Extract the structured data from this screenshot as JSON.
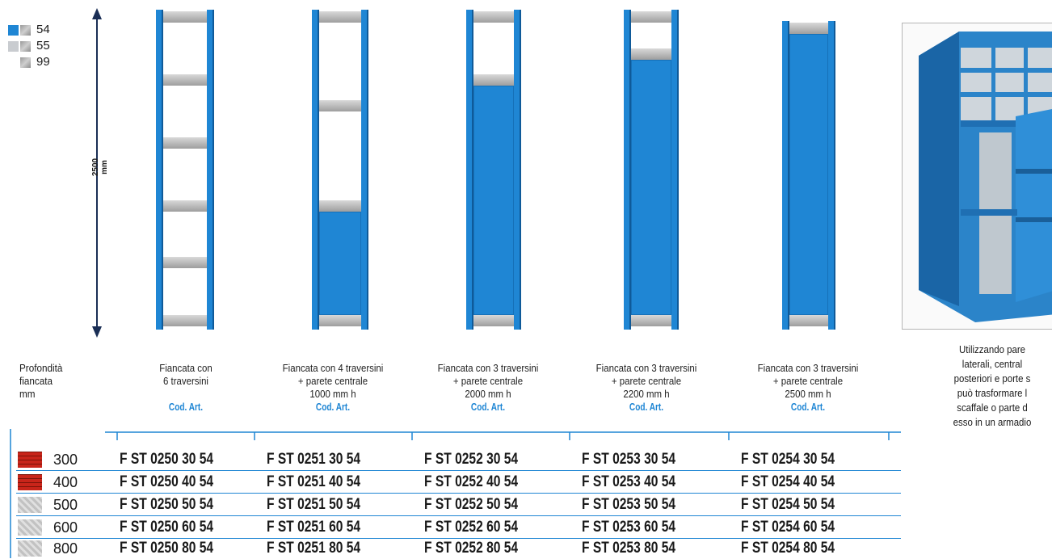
{
  "legend": [
    {
      "label": "54",
      "swatches": [
        "blue",
        "grey"
      ]
    },
    {
      "label": "55",
      "swatches": [
        "light",
        "grey"
      ]
    },
    {
      "label": "99",
      "swatches": [
        "empty",
        "grey"
      ]
    }
  ],
  "dimension_label": "2500 mm",
  "depth_header": {
    "line1": "Profondità",
    "line2": "fiancata",
    "line3": "mm"
  },
  "columns": [
    {
      "lines": [
        "Fiancata con",
        "6 traversini",
        ""
      ],
      "cod": "Cod. Art."
    },
    {
      "lines": [
        "Fiancata con 4 traversini",
        "+ parete centrale",
        "1000 mm h"
      ],
      "cod": "Cod. Art."
    },
    {
      "lines": [
        "Fiancata con 3 traversini",
        "+ parete centrale",
        "2000 mm h"
      ],
      "cod": "Cod. Art."
    },
    {
      "lines": [
        "Fiancata con 3 traversini",
        "+ parete centrale",
        "2200 mm h"
      ],
      "cod": "Cod. Art."
    },
    {
      "lines": [
        "Fiancata con 3 traversini",
        "+ parete centrale",
        "2500 mm h"
      ],
      "cod": "Cod. Art."
    }
  ],
  "rows": [
    {
      "depth": "300",
      "texture": "brick",
      "codes": [
        "F ST 0250 30 54",
        "F ST 0251 30 54",
        "F ST 0252 30 54",
        "F ST 0253 30 54",
        "F ST 0254 30 54"
      ]
    },
    {
      "depth": "400",
      "texture": "brick",
      "codes": [
        "F ST 0250 40 54",
        "F ST 0251 40 54",
        "F ST 0252 40 54",
        "F ST 0253 40 54",
        "F ST 0254 40 54"
      ]
    },
    {
      "depth": "500",
      "texture": "stone",
      "codes": [
        "F ST 0250 50 54",
        "F ST 0251 50 54",
        "F ST 0252 50 54",
        "F ST 0253 50 54",
        "F ST 0254 50 54"
      ]
    },
    {
      "depth": "600",
      "texture": "stone",
      "codes": [
        "F ST 0250 60 54",
        "F ST 0251 60 54",
        "F ST 0252 60 54",
        "F ST 0253 60 54",
        "F ST 0254 60 54"
      ]
    },
    {
      "depth": "800",
      "texture": "stone",
      "codes": [
        "F ST 0250 80 54",
        "F ST 0251 80 54",
        "F ST 0252 80 54",
        "F ST 0253 80 54",
        "F ST 0254 80 54"
      ]
    }
  ],
  "side_caption": [
    "Utilizzando pare",
    "laterali, central",
    "posteriori e porte s",
    "può trasformare l",
    "scaffale o parte d",
    "esso in un armadio"
  ],
  "colors": {
    "accent": "#1f86d4",
    "dark": "#1a2e55"
  }
}
